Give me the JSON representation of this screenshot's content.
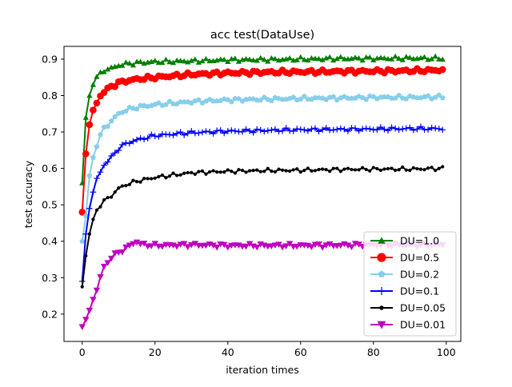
{
  "chart_data": {
    "type": "line",
    "title": "acc test(DataUse)",
    "xlabel": "iteration times",
    "ylabel": "test accuracy",
    "xlim": [
      -5,
      104
    ],
    "ylim": [
      0.125,
      0.935
    ],
    "xticks": [
      0,
      20,
      40,
      60,
      80,
      100
    ],
    "xtick_labels": [
      "0",
      "20",
      "40",
      "60",
      "80",
      "100"
    ],
    "yticks": [
      0.2,
      0.3,
      0.4,
      0.5,
      0.6,
      0.7,
      0.8,
      0.9
    ],
    "ytick_labels": [
      "0.2",
      "0.3",
      "0.4",
      "0.5",
      "0.6",
      "0.7",
      "0.8",
      "0.9"
    ],
    "grid": false,
    "legend_position": "lower right",
    "x_range": [
      0,
      99
    ],
    "series": [
      {
        "name": "DU=1.0",
        "color": "#008000",
        "marker": "triangle-up",
        "key_points": [
          [
            0,
            0.56
          ],
          [
            1,
            0.74
          ],
          [
            2,
            0.8
          ],
          [
            3,
            0.83
          ],
          [
            4,
            0.85
          ],
          [
            5,
            0.86
          ],
          [
            6,
            0.87
          ],
          [
            8,
            0.875
          ],
          [
            10,
            0.883
          ],
          [
            12,
            0.887
          ],
          [
            15,
            0.89
          ],
          [
            20,
            0.893
          ],
          [
            30,
            0.895
          ],
          [
            40,
            0.898
          ],
          [
            50,
            0.899
          ],
          [
            60,
            0.9
          ],
          [
            70,
            0.902
          ],
          [
            80,
            0.902
          ],
          [
            90,
            0.903
          ],
          [
            99,
            0.902
          ]
        ]
      },
      {
        "name": "DU=0.5",
        "color": "#ff0000",
        "marker": "circle",
        "key_points": [
          [
            0,
            0.48
          ],
          [
            1,
            0.64
          ],
          [
            2,
            0.72
          ],
          [
            3,
            0.76
          ],
          [
            4,
            0.78
          ],
          [
            5,
            0.8
          ],
          [
            6,
            0.81
          ],
          [
            8,
            0.825
          ],
          [
            10,
            0.835
          ],
          [
            12,
            0.84
          ],
          [
            15,
            0.845
          ],
          [
            20,
            0.85
          ],
          [
            30,
            0.858
          ],
          [
            40,
            0.862
          ],
          [
            50,
            0.864
          ],
          [
            60,
            0.865
          ],
          [
            70,
            0.866
          ],
          [
            80,
            0.867
          ],
          [
            90,
            0.868
          ],
          [
            99,
            0.87
          ]
        ]
      },
      {
        "name": "DU=0.2",
        "color": "#87ceeb",
        "marker": "pentagon",
        "key_points": [
          [
            0,
            0.4
          ],
          [
            1,
            0.47
          ],
          [
            2,
            0.58
          ],
          [
            3,
            0.63
          ],
          [
            4,
            0.665
          ],
          [
            5,
            0.69
          ],
          [
            6,
            0.71
          ],
          [
            8,
            0.73
          ],
          [
            10,
            0.75
          ],
          [
            12,
            0.76
          ],
          [
            15,
            0.768
          ],
          [
            20,
            0.775
          ],
          [
            30,
            0.783
          ],
          [
            40,
            0.788
          ],
          [
            50,
            0.79
          ],
          [
            60,
            0.792
          ],
          [
            70,
            0.793
          ],
          [
            80,
            0.795
          ],
          [
            90,
            0.795
          ],
          [
            99,
            0.796
          ]
        ]
      },
      {
        "name": "DU=0.1",
        "color": "#0000ff",
        "marker": "plus",
        "key_points": [
          [
            0,
            0.29
          ],
          [
            1,
            0.42
          ],
          [
            2,
            0.49
          ],
          [
            3,
            0.535
          ],
          [
            4,
            0.57
          ],
          [
            5,
            0.59
          ],
          [
            6,
            0.61
          ],
          [
            8,
            0.63
          ],
          [
            10,
            0.655
          ],
          [
            12,
            0.668
          ],
          [
            15,
            0.678
          ],
          [
            20,
            0.69
          ],
          [
            30,
            0.698
          ],
          [
            40,
            0.702
          ],
          [
            50,
            0.704
          ],
          [
            60,
            0.706
          ],
          [
            70,
            0.707
          ],
          [
            80,
            0.708
          ],
          [
            90,
            0.709
          ],
          [
            99,
            0.709
          ]
        ]
      },
      {
        "name": "DU=0.05",
        "color": "#000000",
        "marker": "point",
        "key_points": [
          [
            0,
            0.275
          ],
          [
            1,
            0.36
          ],
          [
            2,
            0.42
          ],
          [
            3,
            0.46
          ],
          [
            4,
            0.485
          ],
          [
            5,
            0.5
          ],
          [
            6,
            0.51
          ],
          [
            8,
            0.525
          ],
          [
            10,
            0.545
          ],
          [
            12,
            0.555
          ],
          [
            15,
            0.565
          ],
          [
            20,
            0.575
          ],
          [
            30,
            0.588
          ],
          [
            40,
            0.592
          ],
          [
            50,
            0.594
          ],
          [
            60,
            0.595
          ],
          [
            70,
            0.597
          ],
          [
            80,
            0.598
          ],
          [
            90,
            0.598
          ],
          [
            99,
            0.6
          ]
        ]
      },
      {
        "name": "DU=0.01",
        "color": "#bf00bf",
        "marker": "triangle-down",
        "key_points": [
          [
            0,
            0.165
          ],
          [
            1,
            0.185
          ],
          [
            2,
            0.21
          ],
          [
            3,
            0.24
          ],
          [
            4,
            0.265
          ],
          [
            5,
            0.3
          ],
          [
            6,
            0.33
          ],
          [
            8,
            0.355
          ],
          [
            10,
            0.37
          ],
          [
            12,
            0.38
          ],
          [
            14,
            0.395
          ],
          [
            15,
            0.398
          ],
          [
            16,
            0.392
          ],
          [
            20,
            0.388
          ],
          [
            30,
            0.39
          ],
          [
            40,
            0.388
          ],
          [
            50,
            0.388
          ],
          [
            60,
            0.388
          ],
          [
            70,
            0.389
          ],
          [
            80,
            0.39
          ],
          [
            90,
            0.39
          ],
          [
            99,
            0.39
          ]
        ]
      }
    ]
  }
}
